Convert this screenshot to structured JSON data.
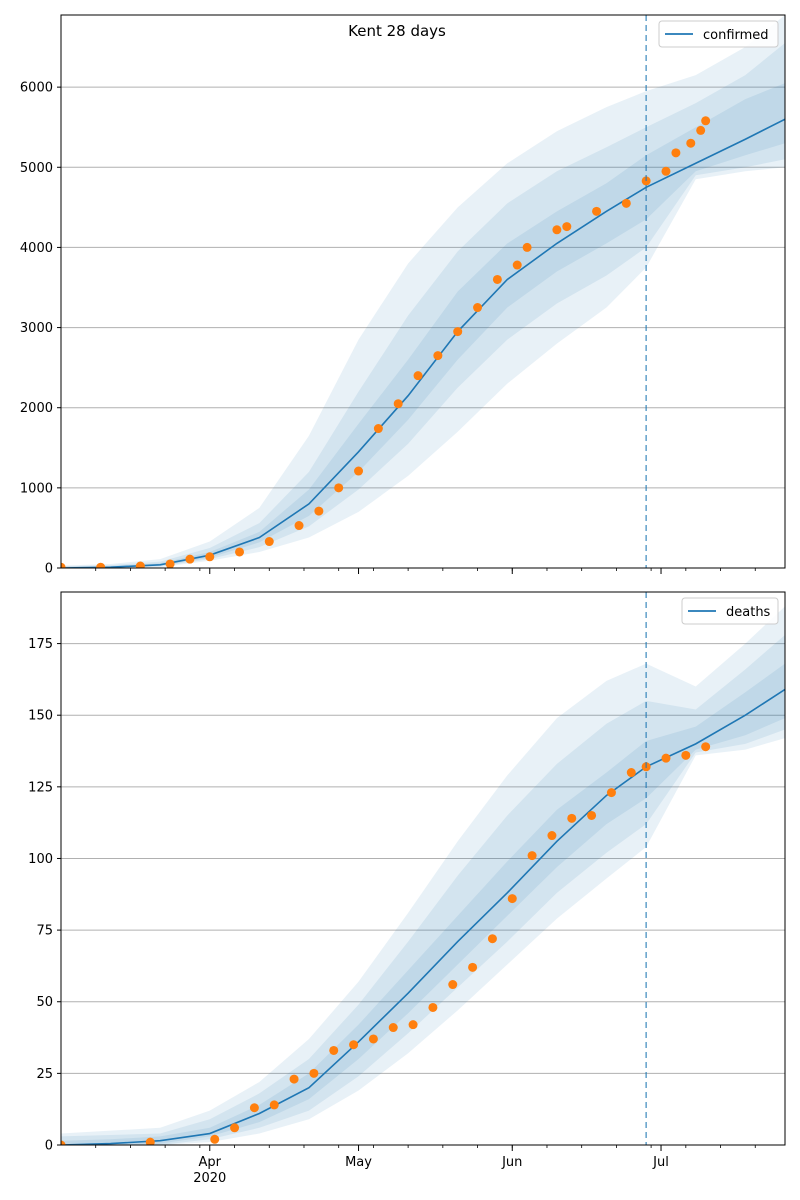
{
  "figure": {
    "title": "Kent 28 days"
  },
  "chart_data": [
    {
      "type": "line",
      "title": "Kent 28 days",
      "xlabel": "",
      "ylabel": "",
      "x_start": "2020-03-02",
      "x_end": "2020-07-26",
      "ylim": [
        0,
        6900
      ],
      "yticks": [
        0,
        1000,
        2000,
        3000,
        4000,
        5000,
        6000
      ],
      "xticks": [
        {
          "date": "2020-04-01",
          "label": "Apr",
          "sublabel": "2020"
        },
        {
          "date": "2020-05-01",
          "label": "May",
          "sublabel": ""
        },
        {
          "date": "2020-06-01",
          "label": "Jun",
          "sublabel": ""
        },
        {
          "date": "2020-07-01",
          "label": "Jul",
          "sublabel": ""
        }
      ],
      "vline_date": "2020-06-28",
      "grid": "y",
      "legend": {
        "position": "top-right",
        "label": "confirmed"
      },
      "colors": {
        "line": "#1f77b4",
        "points": "#ff7f0e",
        "band": "#1f77b4",
        "vline": "#1f77b4"
      },
      "model": {
        "dates": [
          "2020-03-02",
          "2020-03-12",
          "2020-03-22",
          "2020-04-01",
          "2020-04-11",
          "2020-04-21",
          "2020-05-01",
          "2020-05-11",
          "2020-05-21",
          "2020-05-31",
          "2020-06-10",
          "2020-06-20",
          "2020-06-28",
          "2020-07-08",
          "2020-07-18",
          "2020-07-26"
        ],
        "median": [
          0,
          10,
          40,
          160,
          380,
          800,
          1450,
          2150,
          2950,
          3600,
          4050,
          4450,
          4750,
          5050,
          5350,
          5600
        ],
        "bands": [
          {
            "low": [
              0,
              0,
              10,
              90,
              200,
              380,
              700,
              1150,
              1700,
              2300,
              2800,
              3250,
              3750,
              4850,
              4950,
              5000
            ],
            "high": [
              30,
              50,
              110,
              330,
              750,
              1650,
              2850,
              3800,
              4500,
              5050,
              5450,
              5750,
              5950,
              6150,
              6500,
              6900
            ]
          },
          {
            "low": [
              0,
              0,
              20,
              110,
              260,
              520,
              980,
              1550,
              2250,
              2850,
              3300,
              3650,
              4000,
              4900,
              5000,
              5100
            ],
            "high": [
              20,
              35,
              80,
              250,
              560,
              1200,
              2200,
              3150,
              3950,
              4550,
              4950,
              5250,
              5500,
              5800,
              6150,
              6550
            ]
          },
          {
            "low": [
              0,
              5,
              30,
              130,
              320,
              650,
              1200,
              1850,
              2600,
              3250,
              3700,
              4050,
              4350,
              4950,
              5150,
              5300
            ],
            "high": [
              15,
              20,
              60,
              200,
              450,
              980,
              1800,
              2600,
              3450,
              4050,
              4450,
              4800,
              5150,
              5500,
              5850,
              6050
            ]
          }
        ]
      },
      "observed": {
        "dates": [
          "2020-03-02",
          "2020-03-10",
          "2020-03-18",
          "2020-03-24",
          "2020-03-28",
          "2020-04-01",
          "2020-04-07",
          "2020-04-13",
          "2020-04-19",
          "2020-04-23",
          "2020-04-27",
          "2020-05-01",
          "2020-05-05",
          "2020-05-09",
          "2020-05-13",
          "2020-05-17",
          "2020-05-21",
          "2020-05-25",
          "2020-05-29",
          "2020-06-02",
          "2020-06-04",
          "2020-06-10",
          "2020-06-12",
          "2020-06-18",
          "2020-06-24",
          "2020-06-28",
          "2020-07-02",
          "2020-07-04",
          "2020-07-07",
          "2020-07-09",
          "2020-07-10"
        ],
        "values": [
          10,
          10,
          25,
          50,
          110,
          140,
          200,
          330,
          530,
          710,
          1000,
          1210,
          1740,
          2050,
          2400,
          2650,
          2950,
          3250,
          3600,
          3780,
          4000,
          4220,
          4260,
          4450,
          4550,
          4830,
          4950,
          5180,
          5300,
          5460,
          5580
        ]
      }
    },
    {
      "type": "line",
      "title": "",
      "xlabel": "",
      "ylabel": "",
      "x_start": "2020-03-02",
      "x_end": "2020-07-26",
      "ylim": [
        0,
        193
      ],
      "yticks": [
        0,
        25,
        50,
        75,
        100,
        125,
        150,
        175
      ],
      "xticks": [
        {
          "date": "2020-04-01",
          "label": "Apr",
          "sublabel": "2020"
        },
        {
          "date": "2020-05-01",
          "label": "May",
          "sublabel": ""
        },
        {
          "date": "2020-06-01",
          "label": "Jun",
          "sublabel": ""
        },
        {
          "date": "2020-07-01",
          "label": "Jul",
          "sublabel": ""
        }
      ],
      "vline_date": "2020-06-28",
      "grid": "y",
      "legend": {
        "position": "top-right",
        "label": "deaths"
      },
      "colors": {
        "line": "#1f77b4",
        "points": "#ff7f0e",
        "band": "#1f77b4",
        "vline": "#1f77b4"
      },
      "model": {
        "dates": [
          "2020-03-02",
          "2020-03-12",
          "2020-03-22",
          "2020-04-01",
          "2020-04-11",
          "2020-04-21",
          "2020-05-01",
          "2020-05-11",
          "2020-05-21",
          "2020-05-31",
          "2020-06-10",
          "2020-06-20",
          "2020-06-28",
          "2020-07-08",
          "2020-07-18",
          "2020-07-26"
        ],
        "median": [
          0,
          0.5,
          1.5,
          4,
          11,
          20,
          36,
          53,
          71,
          88,
          106,
          122,
          132,
          140,
          150,
          159
        ],
        "bands": [
          {
            "low": [
              0,
              0,
              0,
              1,
              4,
              9,
              19,
              32,
              47,
              63,
              79,
              93,
              104,
              136,
              138,
              142
            ],
            "high": [
              4,
              5,
              6,
              12,
              22,
              37,
              57,
              81,
              106,
              129,
              149,
              162,
              168,
              160,
              175,
              188
            ]
          },
          {
            "low": [
              0,
              0,
              0,
              2,
              6,
              12,
              24,
              39,
              55,
              71,
              88,
              102,
              112,
              137,
              140,
              145
            ],
            "high": [
              3,
              3.5,
              4,
              9,
              18,
              30,
              49,
              71,
              94,
              115,
              133,
              147,
              155,
              152,
              166,
              178
            ]
          },
          {
            "low": [
              0,
              0,
              0.5,
              3,
              8,
              16,
              30,
              46,
              63,
              80,
              97,
              112,
              121,
              138,
              143,
              149
            ],
            "high": [
              1.5,
              2,
              3,
              6,
              14,
              25,
              42,
              61,
              80,
              99,
              117,
              130,
              141,
              146,
              158,
              168
            ]
          }
        ]
      },
      "observed": {
        "dates": [
          "2020-03-02",
          "2020-03-20",
          "2020-04-02",
          "2020-04-06",
          "2020-04-10",
          "2020-04-14",
          "2020-04-18",
          "2020-04-22",
          "2020-04-26",
          "2020-04-30",
          "2020-05-04",
          "2020-05-08",
          "2020-05-12",
          "2020-05-16",
          "2020-05-20",
          "2020-05-24",
          "2020-05-28",
          "2020-06-01",
          "2020-06-05",
          "2020-06-09",
          "2020-06-13",
          "2020-06-17",
          "2020-06-21",
          "2020-06-25",
          "2020-06-28",
          "2020-07-02",
          "2020-07-06",
          "2020-07-10"
        ],
        "values": [
          0,
          1,
          2,
          6,
          13,
          14,
          23,
          25,
          33,
          35,
          37,
          41,
          42,
          48,
          56,
          62,
          72,
          86,
          101,
          108,
          114,
          115,
          123,
          130,
          132,
          135,
          136,
          139
        ]
      }
    }
  ]
}
